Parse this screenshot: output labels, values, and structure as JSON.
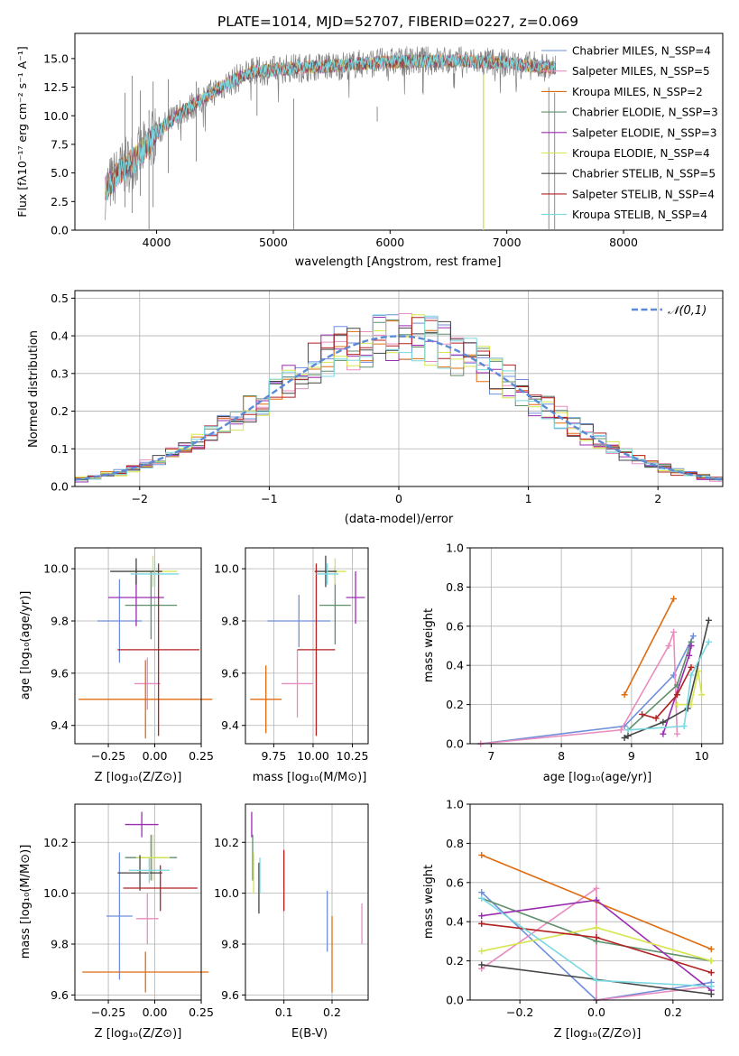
{
  "chart_data": [
    {
      "type": "line",
      "title": "PLATE=1014, MJD=52707, FIBERID=0227, z=0.069",
      "xlabel": "wavelength [Angstrom, rest frame]",
      "ylabel": "Flux [fλ10⁻¹⁷ erg cm⁻² s⁻¹ A⁻¹]",
      "xlim": [
        3300,
        8850
      ],
      "ylim": [
        0,
        17.2
      ],
      "xticks": [
        "4000",
        "5000",
        "6000",
        "7000",
        "8000"
      ],
      "yticks": [
        "0.0",
        "2.5",
        "5.0",
        "7.5",
        "10.0",
        "12.5",
        "15.0"
      ],
      "xtick_values": [
        4000,
        5000,
        6000,
        7000,
        8000
      ],
      "ytick_values": [
        0,
        2.5,
        5,
        7.5,
        10,
        12.5,
        15
      ],
      "grid": false,
      "legend_position": "right",
      "observed_envelope": {
        "x": [
          3560,
          3700,
          3850,
          4000,
          4200,
          4400,
          4600,
          4800,
          5000,
          5200,
          5400,
          5600,
          5800,
          6000,
          6200,
          6400,
          6600,
          6800,
          7000,
          7200,
          7400
        ],
        "y": [
          3.5,
          5.3,
          6.5,
          8.5,
          10.2,
          11.5,
          12.8,
          13.8,
          14.0,
          14.2,
          14.3,
          14.4,
          14.6,
          14.7,
          14.8,
          14.8,
          14.8,
          14.7,
          14.6,
          14.4,
          14.2
        ]
      },
      "series": [
        {
          "name": "Chabrier MILES, N_SSP=4",
          "color": "#6e8fdc"
        },
        {
          "name": "Salpeter MILES, N_SSP=5",
          "color": "#e88dbf"
        },
        {
          "name": "Kroupa MILES, N_SSP=2",
          "color": "#e06c10"
        },
        {
          "name": "Chabrier ELODIE, N_SSP=3",
          "color": "#5f8f6b"
        },
        {
          "name": "Salpeter ELODIE, N_SSP=3",
          "color": "#9b2db0"
        },
        {
          "name": "Kroupa ELODIE, N_SSP=4",
          "color": "#d6e650"
        },
        {
          "name": "Chabrier STELIB, N_SSP=5",
          "color": "#444444"
        },
        {
          "name": "Salpeter STELIB, N_SSP=4",
          "color": "#b22020"
        },
        {
          "name": "Kroupa STELIB, N_SSP=4",
          "color": "#79d8e0"
        }
      ]
    },
    {
      "type": "line",
      "xlabel": "(data-model)/error",
      "ylabel": "Normed distribution",
      "xlim": [
        -2.5,
        2.5
      ],
      "ylim": [
        0,
        0.52
      ],
      "xticks": [
        "−2",
        "−1",
        "0",
        "1",
        "2"
      ],
      "yticks": [
        "0.0",
        "0.1",
        "0.2",
        "0.3",
        "0.4",
        "0.5"
      ],
      "xtick_values": [
        -2,
        -1,
        0,
        1,
        2
      ],
      "ytick_values": [
        0,
        0.1,
        0.2,
        0.3,
        0.4,
        0.5
      ],
      "grid": true,
      "legend_position": "top-right",
      "reference_curve": {
        "name": "𝒩(0,1)",
        "mean": 0,
        "sigma": 1,
        "color": "#5b8bd6",
        "dashed": true
      },
      "histogram_bin_width": 0.1,
      "histograms": [
        {
          "color": "#6e8fdc"
        },
        {
          "color": "#e88dbf"
        },
        {
          "color": "#e06c10"
        },
        {
          "color": "#5f8f6b"
        },
        {
          "color": "#9b2db0"
        },
        {
          "color": "#d6e650"
        },
        {
          "color": "#444444"
        },
        {
          "color": "#b22020"
        },
        {
          "color": "#79d8e0"
        }
      ]
    },
    {
      "type": "scatter",
      "xlabel": "Z [log₁₀(Z/Z⊙)]",
      "ylabel": "age  [log₁₀(age/yr)]",
      "xlim": [
        -0.43,
        0.25
      ],
      "ylim": [
        9.33,
        10.08
      ],
      "xticks": [
        "−0.25",
        "0.00",
        "0.25"
      ],
      "yticks": [
        "9.4",
        "9.6",
        "9.8",
        "10.0"
      ],
      "xtick_values": [
        -0.25,
        0,
        0.25
      ],
      "ytick_values": [
        9.4,
        9.6,
        9.8,
        10.0
      ],
      "grid": true,
      "errorbars": [
        {
          "color": "#6e8fdc",
          "x": -0.19,
          "xerr": 0.12,
          "y": 9.8,
          "yerr": 0.16
        },
        {
          "color": "#e88dbf",
          "x": -0.04,
          "xerr": 0.07,
          "y": 9.56,
          "yerr": 0.1
        },
        {
          "color": "#e06c10",
          "x": -0.05,
          "xerr": 0.36,
          "y": 9.5,
          "yerr": 0.15
        },
        {
          "color": "#5f8f6b",
          "x": -0.02,
          "xerr": 0.14,
          "y": 9.86,
          "yerr": 0.13
        },
        {
          "color": "#9b2db0",
          "x": -0.1,
          "xerr": 0.15,
          "y": 9.89,
          "yerr": 0.11
        },
        {
          "color": "#d6e650",
          "x": -0.01,
          "xerr": 0.13,
          "y": 9.99,
          "yerr": 0.06
        },
        {
          "color": "#444444",
          "x": -0.1,
          "xerr": 0.14,
          "y": 9.99,
          "yerr": 0.05
        },
        {
          "color": "#b22020",
          "x": 0.02,
          "xerr": 0.22,
          "y": 9.69,
          "yerr": 0.33
        },
        {
          "color": "#79d8e0",
          "x": 0.0,
          "xerr": 0.13,
          "y": 9.98,
          "yerr": 0.05
        }
      ]
    },
    {
      "type": "scatter",
      "xlabel": "mass [log₁₀(M/M⊙)]",
      "ylabel": "",
      "xlim": [
        9.57,
        10.35
      ],
      "ylim": [
        9.33,
        10.08
      ],
      "xticks": [
        "9.75",
        "10.00",
        "10.25"
      ],
      "yticks": [
        "9.4",
        "9.6",
        "9.8",
        "10.0"
      ],
      "xtick_values": [
        9.75,
        10.0,
        10.25
      ],
      "ytick_values": [
        9.4,
        9.6,
        9.8,
        10.0
      ],
      "grid": true,
      "errorbars": [
        {
          "color": "#6e8fdc",
          "x": 9.91,
          "xerr": 0.2,
          "y": 9.8,
          "yerr": 0.1
        },
        {
          "color": "#e88dbf",
          "x": 9.9,
          "xerr": 0.1,
          "y": 9.56,
          "yerr": 0.13
        },
        {
          "color": "#e06c10",
          "x": 9.7,
          "xerr": 0.1,
          "y": 9.5,
          "yerr": 0.13
        },
        {
          "color": "#5f8f6b",
          "x": 10.14,
          "xerr": 0.1,
          "y": 9.86,
          "yerr": 0.15
        },
        {
          "color": "#9b2db0",
          "x": 10.27,
          "xerr": 0.06,
          "y": 9.89,
          "yerr": 0.1
        },
        {
          "color": "#d6e650",
          "x": 10.14,
          "xerr": 0.07,
          "y": 9.99,
          "yerr": 0.05
        },
        {
          "color": "#444444",
          "x": 10.08,
          "xerr": 0.07,
          "y": 9.99,
          "yerr": 0.06
        },
        {
          "color": "#b22020",
          "x": 10.02,
          "xerr": 0.12,
          "y": 9.69,
          "yerr": 0.33
        },
        {
          "color": "#79d8e0",
          "x": 10.09,
          "xerr": 0.07,
          "y": 9.98,
          "yerr": 0.04
        }
      ]
    },
    {
      "type": "line",
      "xlabel": "age  [log₁₀(age/yr)]",
      "ylabel": "mass weight",
      "xlim": [
        6.7,
        10.3
      ],
      "ylim": [
        0,
        1
      ],
      "xticks": [
        "7",
        "8",
        "9",
        "10"
      ],
      "yticks": [
        "0.0",
        "0.2",
        "0.4",
        "0.6",
        "0.8",
        "1.0"
      ],
      "xtick_values": [
        7,
        8,
        9,
        10
      ],
      "ytick_values": [
        0,
        0.2,
        0.4,
        0.6,
        0.8,
        1.0
      ],
      "grid": true,
      "series": [
        {
          "color": "#6e8fdc",
          "x": [
            6.85,
            8.9,
            9.6,
            9.88
          ],
          "y": [
            0.0,
            0.09,
            0.35,
            0.55
          ]
        },
        {
          "color": "#e88dbf",
          "x": [
            6.85,
            8.85,
            9.53,
            9.6,
            9.65
          ],
          "y": [
            0.0,
            0.07,
            0.5,
            0.57,
            0.05
          ]
        },
        {
          "color": "#e06c10",
          "x": [
            8.9,
            9.6
          ],
          "y": [
            0.25,
            0.74
          ]
        },
        {
          "color": "#5f8f6b",
          "x": [
            8.95,
            9.65,
            9.85
          ],
          "y": [
            0.07,
            0.3,
            0.52
          ]
        },
        {
          "color": "#9b2db0",
          "x": [
            9.45,
            9.82,
            9.85
          ],
          "y": [
            0.05,
            0.45,
            0.5
          ]
        },
        {
          "color": "#d6e650",
          "x": [
            9.65,
            9.85,
            9.95,
            10.0
          ],
          "y": [
            0.2,
            0.2,
            0.37,
            0.25
          ]
        },
        {
          "color": "#444444",
          "x": [
            8.9,
            8.95,
            9.45,
            9.8,
            10.1
          ],
          "y": [
            0.03,
            0.04,
            0.11,
            0.18,
            0.63
          ]
        },
        {
          "color": "#b22020",
          "x": [
            9.15,
            9.35,
            9.65,
            9.85
          ],
          "y": [
            0.15,
            0.13,
            0.25,
            0.39
          ]
        },
        {
          "color": "#79d8e0",
          "x": [
            8.95,
            9.75,
            9.85,
            10.1
          ],
          "y": [
            0.07,
            0.09,
            0.35,
            0.52
          ]
        }
      ]
    },
    {
      "type": "scatter",
      "xlabel": "Z [log₁₀(Z/Z⊙)]",
      "ylabel": "mass [log₁₀(M/M⊙)]",
      "xlim": [
        -0.43,
        0.25
      ],
      "ylim": [
        9.58,
        10.35
      ],
      "xticks": [
        "−0.25",
        "0.00",
        "0.25"
      ],
      "yticks": [
        "9.6",
        "9.8",
        "10.0",
        "10.2"
      ],
      "xtick_values": [
        -0.25,
        0,
        0.25
      ],
      "ytick_values": [
        9.6,
        9.8,
        10.0,
        10.2
      ],
      "grid": true,
      "errorbars": [
        {
          "color": "#6e8fdc",
          "x": -0.19,
          "xerr": 0.07,
          "y": 9.91,
          "yerr": 0.25
        },
        {
          "color": "#e88dbf",
          "x": -0.04,
          "xerr": 0.06,
          "y": 9.9,
          "yerr": 0.1
        },
        {
          "color": "#e06c10",
          "x": -0.05,
          "xerr": 0.34,
          "y": 9.69,
          "yerr": 0.08
        },
        {
          "color": "#5f8f6b",
          "x": -0.02,
          "xerr": 0.14,
          "y": 10.14,
          "yerr": 0.09
        },
        {
          "color": "#9b2db0",
          "x": -0.07,
          "xerr": 0.09,
          "y": 10.27,
          "yerr": 0.05
        },
        {
          "color": "#d6e650",
          "x": -0.01,
          "xerr": 0.09,
          "y": 10.14,
          "yerr": 0.09
        },
        {
          "color": "#444444",
          "x": -0.08,
          "xerr": 0.12,
          "y": 10.08,
          "yerr": 0.07
        },
        {
          "color": "#b22020",
          "x": 0.03,
          "xerr": 0.2,
          "y": 10.02,
          "yerr": 0.09
        },
        {
          "color": "#79d8e0",
          "x": -0.03,
          "xerr": 0.11,
          "y": 10.09,
          "yerr": 0.05
        }
      ]
    },
    {
      "type": "scatter",
      "xlabel": "E(B-V)",
      "ylabel": "",
      "xlim": [
        0.02,
        0.275
      ],
      "ylim": [
        9.58,
        10.35
      ],
      "xticks": [
        "0.1",
        "0.2"
      ],
      "yticks": [
        "9.6",
        "9.8",
        "10.0",
        "10.2"
      ],
      "xtick_values": [
        0.1,
        0.2
      ],
      "ytick_values": [
        9.6,
        9.8,
        10.0,
        10.2
      ],
      "grid": true,
      "errorbars": [
        {
          "color": "#6e8fdc",
          "x": 0.19,
          "y": 9.89,
          "yerr": 0.12
        },
        {
          "color": "#e88dbf",
          "x": 0.262,
          "y": 9.88,
          "yerr": 0.08
        },
        {
          "color": "#e06c10",
          "x": 0.2,
          "y": 9.76,
          "yerr": 0.15
        },
        {
          "color": "#5f8f6b",
          "x": 0.035,
          "y": 10.14,
          "yerr": 0.09
        },
        {
          "color": "#9b2db0",
          "x": 0.033,
          "y": 10.27,
          "yerr": 0.05
        },
        {
          "color": "#d6e650",
          "x": 0.037,
          "y": 10.08,
          "yerr": 0.08
        },
        {
          "color": "#444444",
          "x": 0.048,
          "y": 10.02,
          "yerr": 0.1
        },
        {
          "color": "#b22020",
          "x": 0.1,
          "y": 10.05,
          "yerr": 0.12
        },
        {
          "color": "#79d8e0",
          "x": 0.05,
          "y": 10.07,
          "yerr": 0.07
        }
      ]
    },
    {
      "type": "line",
      "xlabel": "Z [log₁₀(Z/Z⊙)]",
      "ylabel": "mass weight",
      "xlim": [
        -0.33,
        0.33
      ],
      "ylim": [
        0,
        1
      ],
      "xticks": [
        "−0.2",
        "0.0",
        "0.2"
      ],
      "yticks": [
        "0.0",
        "0.2",
        "0.4",
        "0.6",
        "0.8",
        "1.0"
      ],
      "xtick_values": [
        -0.2,
        0,
        0.2
      ],
      "ytick_values": [
        0,
        0.2,
        0.4,
        0.6,
        0.8,
        1.0
      ],
      "grid": true,
      "series": [
        {
          "color": "#6e8fdc",
          "x": [
            -0.3,
            0.0,
            0.3
          ],
          "y": [
            0.55,
            0.0,
            0.09
          ]
        },
        {
          "color": "#e88dbf",
          "x": [
            -0.3,
            0.0,
            0.0,
            0.3
          ],
          "y": [
            0.16,
            0.57,
            0.0,
            0.07
          ]
        },
        {
          "color": "#e06c10",
          "x": [
            -0.3,
            0.3
          ],
          "y": [
            0.74,
            0.26
          ]
        },
        {
          "color": "#5f8f6b",
          "x": [
            -0.3,
            0.0,
            0.3
          ],
          "y": [
            0.52,
            0.3,
            0.2
          ]
        },
        {
          "color": "#9b2db0",
          "x": [
            -0.3,
            0.0,
            0.3
          ],
          "y": [
            0.43,
            0.51,
            0.05
          ]
        },
        {
          "color": "#d6e650",
          "x": [
            -0.3,
            0.0,
            0.3
          ],
          "y": [
            0.25,
            0.37,
            0.2
          ]
        },
        {
          "color": "#444444",
          "x": [
            -0.3,
            0.3
          ],
          "y": [
            0.18,
            0.03
          ]
        },
        {
          "color": "#b22020",
          "x": [
            -0.3,
            0.0,
            0.3
          ],
          "y": [
            0.39,
            0.32,
            0.14
          ]
        },
        {
          "color": "#79d8e0",
          "x": [
            -0.3,
            0.0,
            0.3
          ],
          "y": [
            0.52,
            0.1,
            0.07
          ]
        }
      ]
    }
  ]
}
